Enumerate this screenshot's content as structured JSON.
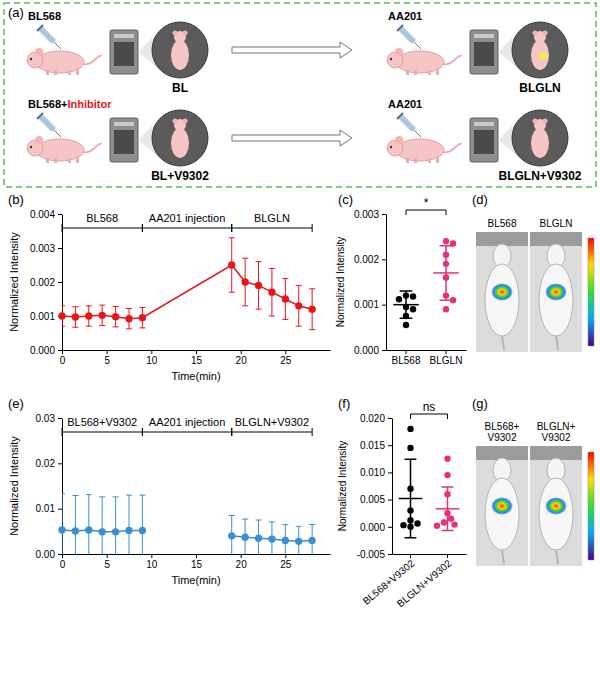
{
  "diagram": {
    "panel": "(a)",
    "rows": [
      {
        "first_injection": [
          {
            "text": "BL568"
          }
        ],
        "first_image": "BL",
        "second_injection": "AA201",
        "second_image": "BLGLN",
        "highlight": "#f5e663"
      },
      {
        "first_injection": [
          {
            "text": "BL568+"
          },
          {
            "text": "Inhibitor",
            "color": "#d7191c"
          }
        ],
        "first_image": "BL+V9302",
        "second_injection": "AA201",
        "second_image": "BLGLN+V9302"
      }
    ]
  },
  "chart_data": [
    {
      "type": "line",
      "panel": "(b)",
      "x_label": "Time(min)",
      "y_label": "Normalized Intensity",
      "series": [
        {
          "color": "#e8141b",
          "marker": "circle",
          "x": [
            0,
            1.5,
            3,
            4.5,
            6,
            7.5,
            9,
            19,
            20.5,
            22,
            23.5,
            25,
            26.5,
            28
          ],
          "values": [
            0.001,
            0.00097,
            0.001,
            0.00102,
            0.00098,
            0.00092,
            0.00095,
            0.0025,
            0.002,
            0.0019,
            0.0017,
            0.0015,
            0.0013,
            0.0012
          ],
          "errors": [
            0.0003,
            0.0003,
            0.0003,
            0.0003,
            0.0003,
            0.0003,
            0.0003,
            0.0008,
            0.0007,
            0.0007,
            0.0007,
            0.0006,
            0.0006,
            0.0006
          ]
        }
      ],
      "xlim": [
        0,
        30
      ],
      "xticks": [
        0,
        5,
        10,
        15,
        20,
        25
      ],
      "ylim": [
        0,
        0.004
      ],
      "yticks": [
        {
          "value": 0,
          "label": "0.000"
        },
        {
          "value": 0.001,
          "label": "0.001"
        },
        {
          "value": 0.002,
          "label": "0.002"
        },
        {
          "value": 0.003,
          "label": "0.003"
        },
        {
          "value": 0.004,
          "label": "0.004"
        }
      ],
      "annotations": [
        {
          "text": "BL568",
          "x": [
            0,
            9
          ]
        },
        {
          "text": "AA201 injection",
          "x": [
            9,
            19
          ]
        },
        {
          "text": "BLGLN",
          "x": [
            19,
            28
          ]
        }
      ]
    },
    {
      "type": "dot",
      "panel": "(c)",
      "y_label": "Normalized Intensity",
      "categories": [
        "BL568",
        "BLGLN"
      ],
      "colors": [
        "#000000",
        "#e6307a"
      ],
      "values": [
        [
          0.0012,
          0.00118,
          0.00112,
          0.00095,
          0.0009,
          0.00075,
          0.00055
        ],
        [
          0.0024,
          0.00235,
          0.0021,
          0.0019,
          0.0016,
          0.0012,
          0.0011,
          0.0009
        ]
      ],
      "mean": [
        0.001,
        0.0017
      ],
      "sd": [
        0.0003,
        0.0006
      ],
      "ylim": [
        0,
        0.003
      ],
      "yticks": [
        {
          "value": 0,
          "label": "0.000"
        },
        {
          "value": 0.001,
          "label": "0.001"
        },
        {
          "value": 0.002,
          "label": "0.002"
        },
        {
          "value": 0.003,
          "label": "0.003"
        }
      ],
      "annotations": [
        {
          "text": "*",
          "categories": [
            0,
            1
          ]
        }
      ]
    },
    {
      "type": "line",
      "panel": "(e)",
      "x_label": "Time(min)",
      "y_label": "Normalized Intensity",
      "series": [
        {
          "color": "#3a8fd0",
          "marker": "circle",
          "x": [
            0,
            1.5,
            3,
            4.5,
            6,
            7.5,
            9
          ],
          "values": [
            0.0053,
            0.0051,
            0.0053,
            0.0049,
            0.0049,
            0.0052,
            0.0052
          ],
          "errors": [
            0.008,
            0.0078,
            0.0078,
            0.0077,
            0.0077,
            0.0078,
            0.0078
          ]
        },
        {
          "color": "#3a8fd0",
          "marker": "circle",
          "x": [
            19,
            20.5,
            22,
            23.5,
            25,
            26.5,
            28
          ],
          "values": [
            0.004,
            0.0037,
            0.0035,
            0.0033,
            0.003,
            0.0028,
            0.003
          ],
          "errors": [
            0.0045,
            0.004,
            0.004,
            0.0038,
            0.0035,
            0.0033,
            0.0035
          ]
        }
      ],
      "xlim": [
        0,
        30
      ],
      "xticks": [
        0,
        5,
        10,
        15,
        20,
        25
      ],
      "ylim": [
        0,
        0.03
      ],
      "yticks": [
        {
          "value": 0,
          "label": "0.00"
        },
        {
          "value": 0.01,
          "label": "0.01"
        },
        {
          "value": 0.02,
          "label": "0.02"
        },
        {
          "value": 0.03,
          "label": "0.03"
        }
      ],
      "annotations": [
        {
          "text": "BL568+V9302",
          "x": [
            0,
            9
          ]
        },
        {
          "text": "AA201 injection",
          "x": [
            9,
            19
          ]
        },
        {
          "text": "BLGLN+V9302",
          "x": [
            19,
            28
          ]
        }
      ]
    },
    {
      "type": "dot",
      "panel": "(f)",
      "y_label": "Normalized Intensity",
      "categories": [
        "BL568+V9302",
        "BLGLN+V9302"
      ],
      "colors": [
        "#000000",
        "#e6307a"
      ],
      "values": [
        [
          0.018,
          0.0145,
          0.007,
          0.003,
          0.0012,
          0.0006,
          0.0003,
          0.0
        ],
        [
          0.0125,
          0.0095,
          0.006,
          0.0025,
          0.0015,
          0.0008,
          0.0004,
          0.0002
        ]
      ],
      "mean": [
        0.0052,
        0.0033
      ],
      "sd": [
        0.0072,
        0.004
      ],
      "ylim": [
        -0.005,
        0.02
      ],
      "yticks": [
        {
          "value": -0.005,
          "label": "-0.005"
        },
        {
          "value": 0,
          "label": "0.000"
        },
        {
          "value": 0.005,
          "label": "0.005"
        },
        {
          "value": 0.01,
          "label": "0.010"
        },
        {
          "value": 0.015,
          "label": "0.015"
        },
        {
          "value": 0.02,
          "label": "0.020"
        }
      ],
      "annotations": [
        {
          "text": "ns",
          "categories": [
            0,
            1
          ]
        }
      ]
    }
  ],
  "images": [
    {
      "panel": "(d)",
      "labels": [
        "BL568",
        "BLGLN"
      ]
    },
    {
      "panel": "(g)",
      "labels": [
        "BL568+V9302",
        "BLGLN+V9302"
      ]
    }
  ]
}
